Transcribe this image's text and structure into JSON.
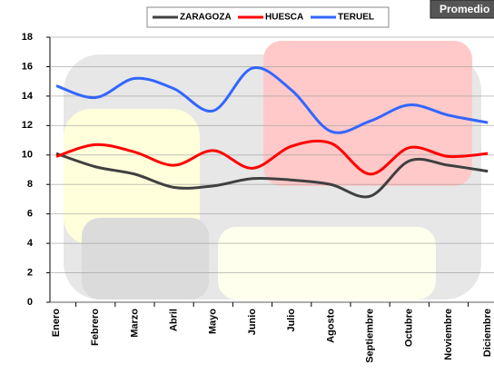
{
  "chart_data": {
    "type": "line",
    "title": "Promedio",
    "categories": [
      "Enero",
      "Febrero",
      "Marzo",
      "Abril",
      "Mayo",
      "Junio",
      "Julio",
      "Agosto",
      "Septiembre",
      "Octubre",
      "Noviembre",
      "Diciembre"
    ],
    "series": [
      {
        "name": "ZARAGOZA",
        "color": "#404040",
        "values": [
          10.1,
          9.2,
          8.7,
          7.8,
          7.9,
          8.4,
          8.3,
          8.0,
          7.2,
          9.6,
          9.3,
          8.9
        ]
      },
      {
        "name": "HUESCA",
        "color": "#ff0000",
        "values": [
          9.9,
          10.7,
          10.2,
          9.3,
          10.3,
          9.1,
          10.6,
          10.8,
          8.7,
          10.5,
          9.9,
          10.1
        ]
      },
      {
        "name": "TERUEL",
        "color": "#3366ff",
        "values": [
          14.7,
          13.9,
          15.2,
          14.5,
          13.0,
          15.9,
          14.4,
          11.6,
          12.3,
          13.4,
          12.7,
          12.2
        ]
      }
    ],
    "ylim": [
      0,
      18
    ],
    "yticks": [
      0,
      2,
      4,
      6,
      8,
      10,
      12,
      14,
      16,
      18
    ],
    "grid": true,
    "legend": "top"
  }
}
